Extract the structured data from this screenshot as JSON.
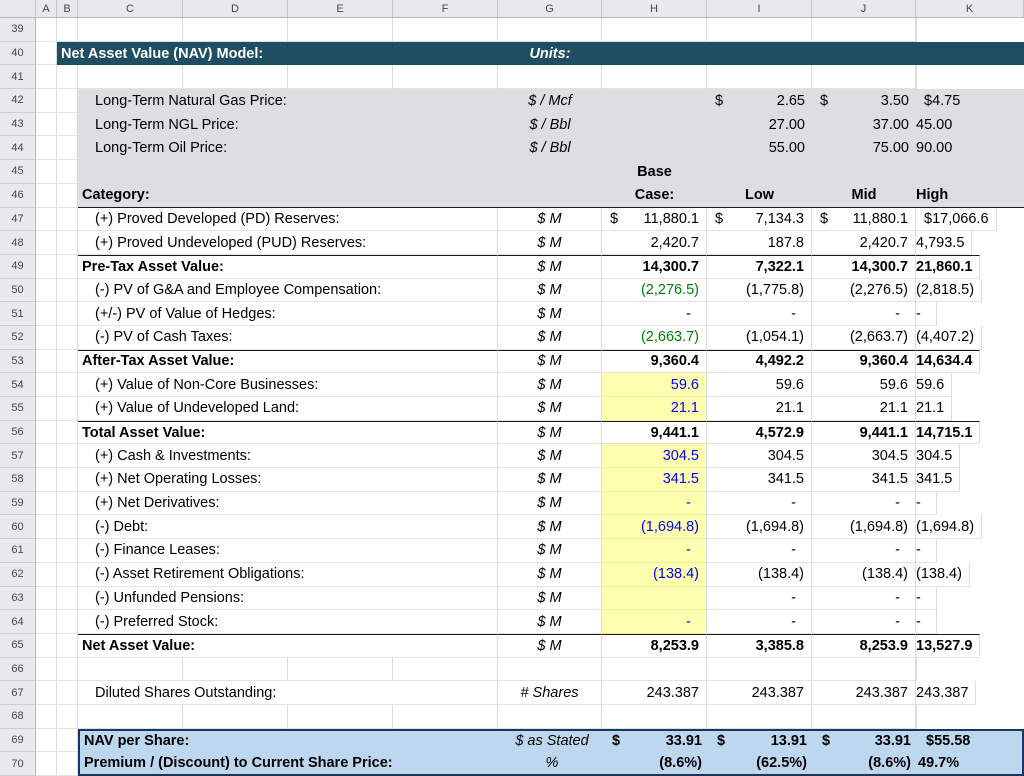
{
  "grid": {
    "col_headers": [
      "A",
      "B",
      "C",
      "D",
      "E",
      "F",
      "G",
      "H",
      "I",
      "J",
      "K"
    ],
    "row_numbers": [
      "39",
      "40",
      "41",
      "42",
      "43",
      "44",
      "45",
      "46",
      "47",
      "48",
      "49",
      "50",
      "51",
      "52",
      "53",
      "54",
      "55",
      "56",
      "57",
      "58",
      "59",
      "60",
      "61",
      "62",
      "63",
      "64",
      "65",
      "66",
      "67",
      "68",
      "69",
      "70"
    ]
  },
  "title_bar": {
    "title": "Net Asset Value (NAV) Model:",
    "units_label": "Units:"
  },
  "scenario_header": {
    "category": "Category:",
    "base_line1": "Base",
    "base_line2": "Case:",
    "low": "Low",
    "mid": "Mid",
    "high": "High"
  },
  "assumptions": [
    {
      "label": "Long-Term Natural Gas Price:",
      "unit": "$ / Mcf",
      "cur": "$",
      "low": "2.65",
      "mid": "3.50",
      "high": "4.75"
    },
    {
      "label": "Long-Term NGL Price:",
      "unit": "$ / Bbl",
      "low": "27.00",
      "mid": "37.00",
      "high": "45.00"
    },
    {
      "label": "Long-Term Oil Price:",
      "unit": "$ / Bbl",
      "low": "55.00",
      "mid": "75.00",
      "high": "90.00"
    }
  ],
  "table": [
    {
      "label": "(+) Proved Developed (PD) Reserves:",
      "unit": "$ M",
      "cur": "$",
      "base": "11,880.1",
      "low": "7,134.3",
      "mid": "11,880.1",
      "high": "17,066.6"
    },
    {
      "label": "(+) Proved Undeveloped (PUD) Reserves:",
      "unit": "$ M",
      "base": "2,420.7",
      "low": "187.8",
      "mid": "2,420.7",
      "high": "4,793.5"
    },
    {
      "label": "Pre-Tax Asset Value:",
      "unit": "$ M",
      "base": "14,300.7",
      "low": "7,322.1",
      "mid": "14,300.7",
      "high": "21,860.1"
    },
    {
      "label": "(-) PV of G&A and Employee Compensation:",
      "unit": "$ M",
      "base": "(2,276.5)",
      "low": "(1,775.8)",
      "mid": "(2,276.5)",
      "high": "(2,818.5)"
    },
    {
      "label": "(+/-) PV of Value of Hedges:",
      "unit": "$ M",
      "base": "-",
      "low": "-",
      "mid": "-",
      "high": "-"
    },
    {
      "label": "(-) PV of Cash Taxes:",
      "unit": "$ M",
      "base": "(2,663.7)",
      "low": "(1,054.1)",
      "mid": "(2,663.7)",
      "high": "(4,407.2)"
    },
    {
      "label": "After-Tax Asset Value:",
      "unit": "$ M",
      "base": "9,360.4",
      "low": "4,492.2",
      "mid": "9,360.4",
      "high": "14,634.4"
    },
    {
      "label": "(+) Value of Non-Core Businesses:",
      "unit": "$ M",
      "base": "59.6",
      "low": "59.6",
      "mid": "59.6",
      "high": "59.6"
    },
    {
      "label": "(+) Value of Undeveloped Land:",
      "unit": "$ M",
      "base": "21.1",
      "low": "21.1",
      "mid": "21.1",
      "high": "21.1"
    },
    {
      "label": "Total Asset Value:",
      "unit": "$ M",
      "base": "9,441.1",
      "low": "4,572.9",
      "mid": "9,441.1",
      "high": "14,715.1"
    },
    {
      "label": "(+) Cash & Investments:",
      "unit": "$ M",
      "base": "304.5",
      "low": "304.5",
      "mid": "304.5",
      "high": "304.5"
    },
    {
      "label": "(+) Net Operating Losses:",
      "unit": "$ M",
      "base": "341.5",
      "low": "341.5",
      "mid": "341.5",
      "high": "341.5"
    },
    {
      "label": "(+) Net Derivatives:",
      "unit": "$ M",
      "base": "-",
      "low": "-",
      "mid": "-",
      "high": "-"
    },
    {
      "label": "(-) Debt:",
      "unit": "$ M",
      "base": "(1,694.8)",
      "low": "(1,694.8)",
      "mid": "(1,694.8)",
      "high": "(1,694.8)"
    },
    {
      "label": "(-) Finance Leases:",
      "unit": "$ M",
      "base": "-",
      "low": "-",
      "mid": "-",
      "high": "-"
    },
    {
      "label": "(-) Asset Retirement Obligations:",
      "unit": "$ M",
      "base": "(138.4)",
      "low": "(138.4)",
      "mid": "(138.4)",
      "high": "(138.4)"
    },
    {
      "label": "(-) Unfunded Pensions:",
      "unit": "$ M",
      "base": "",
      "low": "-",
      "mid": "-",
      "high": "-"
    },
    {
      "label": "(-) Preferred Stock:",
      "unit": "$ M",
      "base": "-",
      "low": "-",
      "mid": "-",
      "high": "-"
    },
    {
      "label": "Net Asset Value:",
      "unit": "$ M",
      "base": "8,253.9",
      "low": "3,385.8",
      "mid": "8,253.9",
      "high": "13,527.9"
    }
  ],
  "shares_row": {
    "label": "Diluted Shares Outstanding:",
    "unit": "# Shares",
    "base": "243.387",
    "low": "243.387",
    "mid": "243.387",
    "high": "243.387"
  },
  "footer": [
    {
      "label": "NAV per Share:",
      "unit": "$ as Stated",
      "cur": "$",
      "base": "33.91",
      "low": "13.91",
      "mid": "33.91",
      "high": "55.58"
    },
    {
      "label": "Premium / (Discount) to Current Share Price:",
      "unit": "%",
      "base": "(8.6%)",
      "low": "(62.5%)",
      "mid": "(8.6%)",
      "high": "49.7%"
    }
  ],
  "colors": {
    "title_bar_bg": "#1f4e63",
    "assumptions_bg": "#dbdfe2",
    "input_cell_bg": "#ffffb0",
    "input_text": "#0000ff",
    "linked_value_text": "#008000",
    "footer_bg": "#bdd7ee",
    "footer_border": "#17375e"
  }
}
